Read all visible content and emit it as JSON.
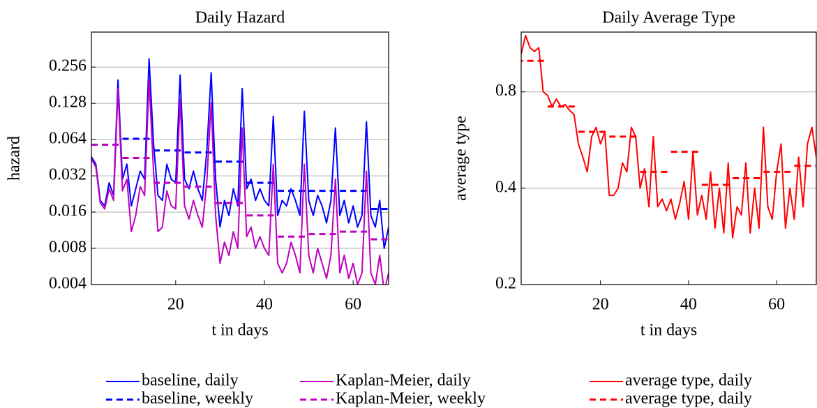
{
  "chart_data": [
    {
      "type": "line",
      "title": "Daily Hazard",
      "x_label": "t in days",
      "y_label": "hazard",
      "yscale": "log",
      "grid": true,
      "xlim": [
        1,
        68
      ],
      "xticks": [
        20,
        40,
        60
      ],
      "ylim": [
        0.004,
        0.5
      ],
      "yticks": [
        0.004,
        0.008,
        0.016,
        0.032,
        0.064,
        0.128,
        0.256
      ],
      "series": [
        {
          "name": "baseline, daily",
          "color": "#0000ff",
          "dashed": false,
          "x": [
            1,
            2,
            3,
            4,
            5,
            6,
            7,
            8,
            9,
            10,
            11,
            12,
            13,
            14,
            15,
            16,
            17,
            18,
            19,
            20,
            21,
            22,
            23,
            24,
            25,
            26,
            27,
            28,
            29,
            30,
            31,
            32,
            33,
            34,
            35,
            36,
            37,
            38,
            39,
            40,
            41,
            42,
            43,
            44,
            45,
            46,
            47,
            48,
            49,
            50,
            51,
            52,
            53,
            54,
            55,
            56,
            57,
            58,
            59,
            60,
            61,
            62,
            63,
            64,
            65,
            66,
            67,
            68
          ],
          "values": [
            0.046,
            0.04,
            0.02,
            0.018,
            0.028,
            0.022,
            0.2,
            0.03,
            0.04,
            0.018,
            0.025,
            0.035,
            0.03,
            0.3,
            0.06,
            0.022,
            0.02,
            0.04,
            0.03,
            0.028,
            0.22,
            0.03,
            0.025,
            0.035,
            0.025,
            0.02,
            0.05,
            0.23,
            0.03,
            0.012,
            0.02,
            0.015,
            0.025,
            0.018,
            0.17,
            0.025,
            0.03,
            0.02,
            0.025,
            0.02,
            0.018,
            0.1,
            0.015,
            0.02,
            0.018,
            0.025,
            0.02,
            0.015,
            0.11,
            0.02,
            0.015,
            0.022,
            0.018,
            0.013,
            0.02,
            0.08,
            0.015,
            0.02,
            0.013,
            0.018,
            0.012,
            0.015,
            0.09,
            0.015,
            0.012,
            0.02,
            0.008,
            0.012
          ]
        },
        {
          "name": "baseline, weekly",
          "color": "#0000ff",
          "dashed": true,
          "x": [
            8,
            15,
            22,
            29,
            36,
            43,
            50,
            57,
            64
          ],
          "values": [
            0.065,
            0.052,
            0.05,
            0.042,
            0.028,
            0.024,
            0.024,
            0.024,
            0.017
          ]
        },
        {
          "name": "Kaplan-Meier, daily",
          "color": "#bf00bf",
          "dashed": false,
          "x": [
            1,
            2,
            3,
            4,
            5,
            6,
            7,
            8,
            9,
            10,
            11,
            12,
            13,
            14,
            15,
            16,
            17,
            18,
            19,
            20,
            21,
            22,
            23,
            24,
            25,
            26,
            27,
            28,
            29,
            30,
            31,
            32,
            33,
            34,
            35,
            36,
            37,
            38,
            39,
            40,
            41,
            42,
            43,
            44,
            45,
            46,
            47,
            48,
            49,
            50,
            51,
            52,
            53,
            54,
            55,
            56,
            57,
            58,
            59,
            60,
            61,
            62,
            63,
            64,
            65,
            66,
            67,
            68
          ],
          "values": [
            0.044,
            0.038,
            0.019,
            0.017,
            0.025,
            0.02,
            0.17,
            0.024,
            0.03,
            0.011,
            0.015,
            0.026,
            0.022,
            0.2,
            0.035,
            0.011,
            0.012,
            0.024,
            0.018,
            0.017,
            0.14,
            0.018,
            0.014,
            0.02,
            0.015,
            0.012,
            0.028,
            0.13,
            0.015,
            0.006,
            0.009,
            0.007,
            0.011,
            0.008,
            0.08,
            0.01,
            0.012,
            0.008,
            0.01,
            0.008,
            0.007,
            0.04,
            0.006,
            0.005,
            0.006,
            0.009,
            0.007,
            0.005,
            0.04,
            0.007,
            0.005,
            0.008,
            0.006,
            0.0045,
            0.007,
            0.03,
            0.005,
            0.007,
            0.0045,
            0.006,
            0.004,
            0.005,
            0.035,
            0.005,
            0.004,
            0.007,
            0.0035,
            0.005
          ]
        },
        {
          "name": "Kaplan-Meier, weekly",
          "color": "#bf00bf",
          "dashed": true,
          "x": [
            1,
            8,
            15,
            22,
            29,
            36,
            43,
            50,
            57,
            64
          ],
          "values": [
            0.058,
            0.045,
            0.028,
            0.026,
            0.019,
            0.015,
            0.01,
            0.0105,
            0.011,
            0.0095
          ]
        }
      ]
    },
    {
      "type": "line",
      "title": "Daily Average Type",
      "x_label": "t in days",
      "y_label": "average type",
      "yscale": "log",
      "grid": true,
      "xlim": [
        2,
        69
      ],
      "xticks": [
        20,
        40,
        60
      ],
      "ylim": [
        0.2,
        1.23
      ],
      "yticks": [
        0.2,
        0.4,
        0.8
      ],
      "series": [
        {
          "name": "average type, daily",
          "color": "#ff0000",
          "dashed": false,
          "x": [
            2,
            3,
            4,
            5,
            6,
            7,
            8,
            9,
            10,
            11,
            12,
            13,
            14,
            15,
            16,
            17,
            18,
            19,
            20,
            21,
            22,
            23,
            24,
            25,
            26,
            27,
            28,
            29,
            30,
            31,
            32,
            33,
            34,
            35,
            36,
            37,
            38,
            39,
            40,
            41,
            42,
            43,
            44,
            45,
            46,
            47,
            48,
            49,
            50,
            51,
            52,
            53,
            54,
            55,
            56,
            57,
            58,
            59,
            60,
            61,
            62,
            63,
            64,
            65,
            66,
            67,
            68,
            69
          ],
          "values": [
            1.05,
            1.2,
            1.1,
            1.07,
            1.1,
            0.8,
            0.78,
            0.72,
            0.76,
            0.72,
            0.73,
            0.7,
            0.68,
            0.55,
            0.5,
            0.45,
            0.58,
            0.62,
            0.55,
            0.6,
            0.38,
            0.38,
            0.4,
            0.48,
            0.45,
            0.62,
            0.58,
            0.4,
            0.46,
            0.35,
            0.58,
            0.35,
            0.37,
            0.34,
            0.37,
            0.32,
            0.36,
            0.42,
            0.32,
            0.52,
            0.33,
            0.38,
            0.32,
            0.45,
            0.3,
            0.4,
            0.29,
            0.48,
            0.28,
            0.35,
            0.33,
            0.48,
            0.29,
            0.4,
            0.3,
            0.62,
            0.35,
            0.32,
            0.45,
            0.55,
            0.3,
            0.4,
            0.32,
            0.5,
            0.35,
            0.55,
            0.62,
            0.5
          ]
        },
        {
          "name": "average type, daily",
          "color": "#ff0000",
          "dashed": true,
          "x": [
            1,
            8,
            15,
            22,
            29,
            36,
            43,
            50,
            57,
            64
          ],
          "values": [
            1.0,
            0.72,
            0.6,
            0.58,
            0.45,
            0.52,
            0.41,
            0.43,
            0.45,
            0.47
          ]
        }
      ]
    }
  ]
}
